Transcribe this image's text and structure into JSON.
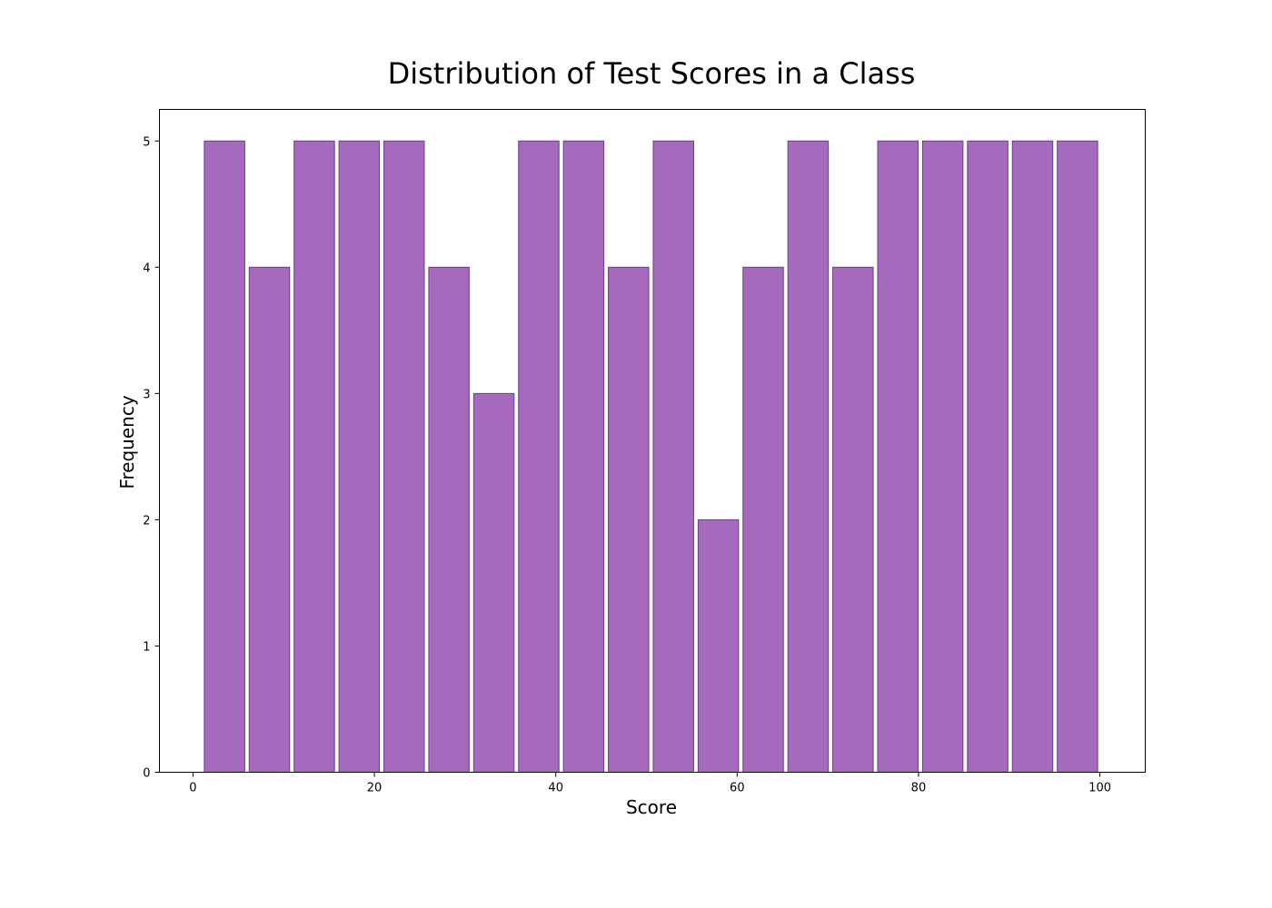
{
  "chart_data": {
    "type": "bar",
    "title": "Distribution of Test Scores in a Class",
    "xlabel": "Score",
    "ylabel": "Frequency",
    "bins": [
      {
        "start": 1.0,
        "end": 5.95,
        "value": 5
      },
      {
        "start": 5.95,
        "end": 10.9,
        "value": 4
      },
      {
        "start": 10.9,
        "end": 15.85,
        "value": 5
      },
      {
        "start": 15.85,
        "end": 20.8,
        "value": 5
      },
      {
        "start": 20.8,
        "end": 25.75,
        "value": 5
      },
      {
        "start": 25.75,
        "end": 30.7,
        "value": 4
      },
      {
        "start": 30.7,
        "end": 35.65,
        "value": 3
      },
      {
        "start": 35.65,
        "end": 40.6,
        "value": 5
      },
      {
        "start": 40.6,
        "end": 45.55,
        "value": 5
      },
      {
        "start": 45.55,
        "end": 50.5,
        "value": 4
      },
      {
        "start": 50.5,
        "end": 55.45,
        "value": 5
      },
      {
        "start": 55.45,
        "end": 60.4,
        "value": 2
      },
      {
        "start": 60.4,
        "end": 65.35,
        "value": 4
      },
      {
        "start": 65.35,
        "end": 70.3,
        "value": 5
      },
      {
        "start": 70.3,
        "end": 75.25,
        "value": 4
      },
      {
        "start": 75.25,
        "end": 80.2,
        "value": 5
      },
      {
        "start": 80.2,
        "end": 85.15,
        "value": 5
      },
      {
        "start": 85.15,
        "end": 90.1,
        "value": 5
      },
      {
        "start": 90.1,
        "end": 95.05,
        "value": 5
      },
      {
        "start": 95.05,
        "end": 100.0,
        "value": 5
      }
    ],
    "xlim": [
      -3.7,
      105.0
    ],
    "ylim": [
      0,
      5.25
    ],
    "xticks": [
      0,
      20,
      40,
      60,
      80,
      100
    ],
    "yticks": [
      0,
      1,
      2,
      3,
      4,
      5
    ],
    "grid": false,
    "colors": {
      "bar_fill": "#a569bd",
      "bar_edge": "#6c3f84"
    }
  }
}
